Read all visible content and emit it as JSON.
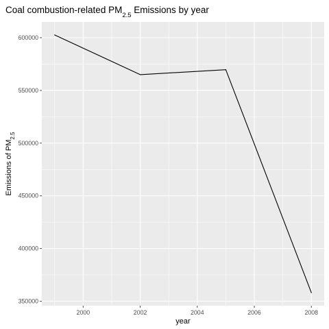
{
  "chart_data": {
    "type": "line",
    "title": {
      "prefix": "Coal combustion-related PM",
      "subscript": "2.5",
      "suffix": " Emissions by year"
    },
    "xlabel": "year",
    "ylabel": {
      "prefix": "Emissions of PM",
      "subscript": "2.5"
    },
    "x": [
      1999,
      2002,
      2005,
      2008
    ],
    "series": [
      {
        "values": [
          602624,
          564940,
          569655,
          358084
        ]
      }
    ],
    "xlim": [
      1999,
      2008
    ],
    "ylim": [
      345757,
      614951
    ],
    "xticks": [
      2000,
      2002,
      2004,
      2006,
      2008
    ],
    "yticks": [
      350000,
      400000,
      450000,
      500000,
      550000,
      600000
    ],
    "ytick_labels": [
      "350000",
      "400000",
      "450000",
      "500000",
      "550000",
      "600000"
    ],
    "xtick_labels": [
      "2000",
      "2002",
      "2004",
      "2006",
      "2008"
    ],
    "grid": true,
    "legend": "none",
    "colors": {
      "panel": "#ebebeb",
      "grid": "#ffffff",
      "line": "#000000",
      "ticks": "#4d4d4d"
    }
  }
}
